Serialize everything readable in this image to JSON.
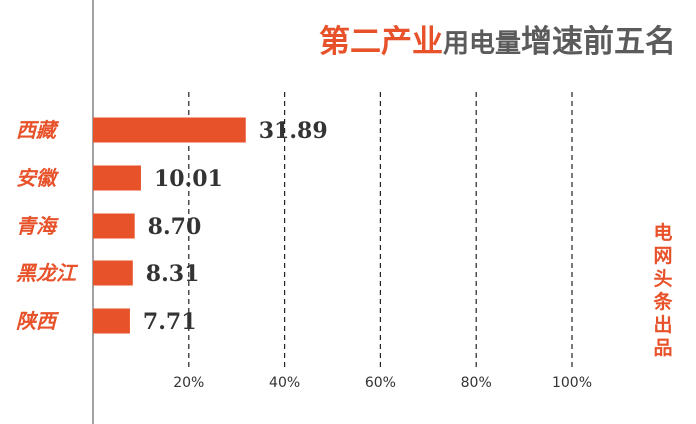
{
  "title": {
    "part1": "第二产业",
    "part2": "用电量",
    "part3": "增速前五名"
  },
  "side_note": [
    "电",
    "网",
    "头",
    "条",
    "出",
    "品"
  ],
  "colors": {
    "accent": "#e8522a",
    "title_gray": "#5b5b5b",
    "text": "#333333"
  },
  "chart_data": {
    "type": "bar",
    "orientation": "horizontal",
    "categories": [
      "西藏",
      "安徽",
      "青海",
      "黑龙江",
      "陕西"
    ],
    "values": [
      31.89,
      10.01,
      8.7,
      8.31,
      7.71
    ],
    "value_labels": [
      "31.89",
      "10.01",
      "8.70",
      "8.31",
      "7.71"
    ],
    "x_ticks": [
      20,
      40,
      60,
      80,
      100
    ],
    "x_tick_labels": [
      "20%",
      "40%",
      "60%",
      "80%",
      "100%"
    ],
    "xlim": [
      0,
      100
    ],
    "grid": "vertical dashed",
    "title": "第二产业用电量增速前五名",
    "xlabel": "",
    "ylabel": ""
  }
}
